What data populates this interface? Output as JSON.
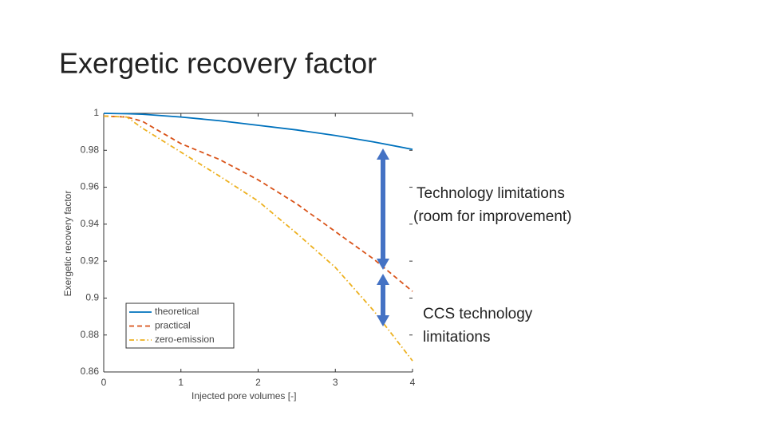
{
  "slide_title": "Exergetic recovery factor",
  "annotations": [
    "Technology limitations",
    "(room for improvement)",
    "CCS technology",
    "limitations"
  ],
  "chart_data": {
    "type": "line",
    "x_label": "Injected pore volumes [-]",
    "y_label": "Exergetic recovery factor",
    "x": [
      0,
      0.3,
      0.5,
      1,
      1.5,
      2,
      2.5,
      3,
      3.5,
      4
    ],
    "series": [
      {
        "name": "theoretical",
        "color": "#0072bd",
        "dash": "solid",
        "values": [
          1,
          0.9998,
          0.9995,
          0.998,
          0.996,
          0.9935,
          0.991,
          0.988,
          0.9845,
          0.9805
        ]
      },
      {
        "name": "practical",
        "color": "#d95319",
        "dash": "dashed",
        "values": [
          0.9985,
          0.998,
          0.9957,
          0.9836,
          0.975,
          0.964,
          0.951,
          0.936,
          0.921,
          0.9036
        ]
      },
      {
        "name": "zero-emission",
        "color": "#edb120",
        "dash": "dashdot",
        "values": [
          0.9985,
          0.998,
          0.992,
          0.979,
          0.966,
          0.9525,
          0.935,
          0.9166,
          0.893,
          0.866
        ]
      }
    ],
    "xlim": [
      0,
      4
    ],
    "xticks": [
      0,
      1,
      2,
      3,
      4
    ],
    "ylim": [
      0.86,
      1
    ],
    "yticks": [
      0.86,
      0.88,
      0.9,
      0.92,
      0.94,
      0.96,
      0.98,
      1
    ],
    "legend": "lower left"
  }
}
